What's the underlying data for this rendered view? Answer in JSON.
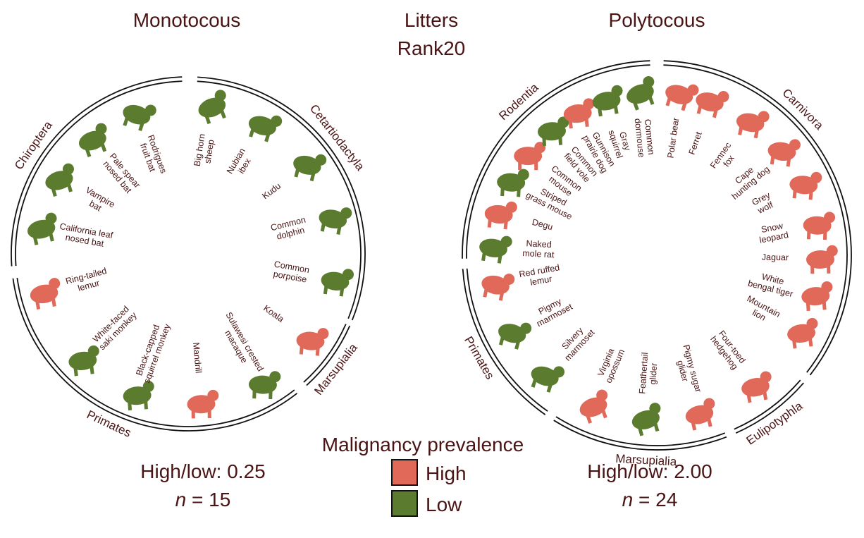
{
  "header": {
    "title": [
      "Litters",
      "Rank20"
    ]
  },
  "panels": [
    {
      "title": "Monotocous",
      "groups": [
        "Cetartiodactyla",
        "Marsupialia",
        "Primates",
        "Chiroptera"
      ],
      "animals": [
        {
          "label": [
            "Big horn",
            "sheep"
          ],
          "color": "#5b7b2f"
        },
        {
          "label": [
            "Nubian",
            "ibex"
          ],
          "color": "#5b7b2f"
        },
        {
          "label": [
            "Kudu"
          ],
          "color": "#5b7b2f"
        },
        {
          "label": [
            "Common",
            "dolphin"
          ],
          "color": "#5b7b2f"
        },
        {
          "label": [
            "Common",
            "porpoise"
          ],
          "color": "#5b7b2f"
        },
        {
          "label": [
            "Koala"
          ],
          "color": "#e0695a"
        },
        {
          "label": [
            "Sulawesi crested",
            "macaque"
          ],
          "color": "#5b7b2f"
        },
        {
          "label": [
            "Mandrill"
          ],
          "color": "#e0695a"
        },
        {
          "label": [
            "Black-capped",
            "squirrel monkey"
          ],
          "color": "#5b7b2f"
        },
        {
          "label": [
            "White-faced",
            "saki monkey"
          ],
          "color": "#5b7b2f"
        },
        {
          "label": [
            "Ring-tailed",
            "lemur"
          ],
          "color": "#e0695a"
        },
        {
          "label": [
            "California leaf",
            "nosed bat"
          ],
          "color": "#5b7b2f"
        },
        {
          "label": [
            "Vampire",
            "bat"
          ],
          "color": "#5b7b2f"
        },
        {
          "label": [
            "Pale spear",
            "nosed bat"
          ],
          "color": "#5b7b2f"
        },
        {
          "label": [
            "Rodrigues",
            "fruit bat"
          ],
          "color": "#5b7b2f"
        }
      ],
      "stats": {
        "ratio": "High/low: 0.25",
        "n": [
          "n",
          " = 15"
        ]
      }
    },
    {
      "title": "Polytocous",
      "groups": [
        "Carnivora",
        "Eulipotyphla",
        "Marsupialia",
        "Primates",
        "Rodentia"
      ],
      "animals": [
        {
          "label": [
            "Common",
            "dormouse"
          ],
          "color": "#5b7b2f"
        },
        {
          "label": [
            "Polar bear"
          ],
          "color": "#e0695a"
        },
        {
          "label": [
            "Ferret"
          ],
          "color": "#e0695a"
        },
        {
          "label": [
            "Fennec",
            "fox"
          ],
          "color": "#e0695a"
        },
        {
          "label": [
            "Cape",
            "hunting dog"
          ],
          "color": "#e0695a"
        },
        {
          "label": [
            "Grey",
            "wolf"
          ],
          "color": "#e0695a"
        },
        {
          "label": [
            "Snow",
            "leopard"
          ],
          "color": "#e0695a"
        },
        {
          "label": [
            "Jaguar"
          ],
          "color": "#e0695a"
        },
        {
          "label": [
            "White",
            "bengal tiger"
          ],
          "color": "#e0695a"
        },
        {
          "label": [
            "Mountain",
            "lion"
          ],
          "color": "#e0695a"
        },
        {
          "label": [
            "Four-toed",
            "hedgehog"
          ],
          "color": "#e0695a"
        },
        {
          "label": [
            "Pigmy sugar",
            "glider"
          ],
          "color": "#e0695a"
        },
        {
          "label": [
            "Feathertail",
            "glider"
          ],
          "color": "#5b7b2f"
        },
        {
          "label": [
            "Virginia",
            "opossum"
          ],
          "color": "#e0695a"
        },
        {
          "label": [
            "Silvery",
            "marmoset"
          ],
          "color": "#5b7b2f"
        },
        {
          "label": [
            "Pigmy",
            "marmoset"
          ],
          "color": "#5b7b2f"
        },
        {
          "label": [
            "Red ruffed",
            "lemur"
          ],
          "color": "#e0695a"
        },
        {
          "label": [
            "Naked",
            "mole rat"
          ],
          "color": "#5b7b2f"
        },
        {
          "label": [
            "Degu"
          ],
          "color": "#e0695a"
        },
        {
          "label": [
            "Striped",
            "grass mouse"
          ],
          "color": "#5b7b2f"
        },
        {
          "label": [
            "Common",
            "mouse"
          ],
          "color": "#e0695a"
        },
        {
          "label": [
            "Common",
            "field vole"
          ],
          "color": "#5b7b2f"
        },
        {
          "label": [
            "Gunnison",
            "prairie dog"
          ],
          "color": "#e0695a"
        },
        {
          "label": [
            "Gray",
            "squirrel"
          ],
          "color": "#5b7b2f"
        }
      ],
      "stats": {
        "ratio": "High/low: 2.00",
        "n": [
          "n",
          " = 24"
        ]
      }
    }
  ],
  "legend": {
    "title": "Malignancy prevalence",
    "items": [
      {
        "label": "High",
        "color": "#e0695a"
      },
      {
        "label": "Low",
        "color": "#5b7b2f"
      }
    ]
  }
}
